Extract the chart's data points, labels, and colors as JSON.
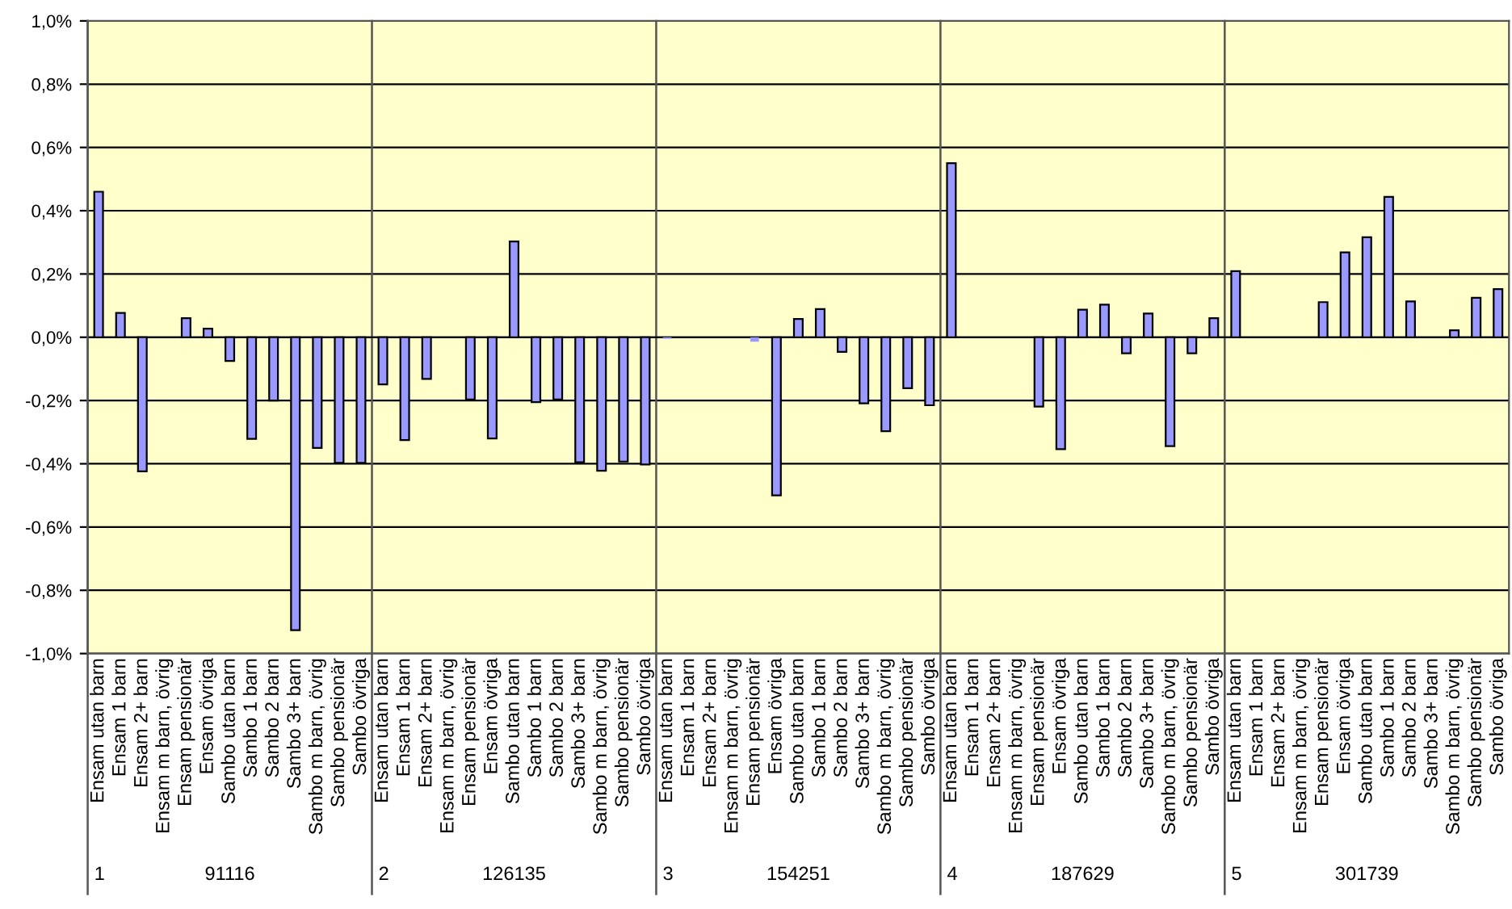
{
  "chart_data": {
    "type": "bar",
    "categories": [
      "Ensam utan barn",
      "Ensam 1 barn",
      "Ensam 2+ barn",
      "Ensam m barn, övrig",
      "Ensam pensionär",
      "Ensam övriga",
      "Sambo utan barn",
      "Sambo 1 barn",
      "Sambo 2 barn",
      "Sambo 3+ barn",
      "Sambo m barn, övrig",
      "Sambo pensionär",
      "Sambo övriga",
      "Ensam utan barn",
      "Ensam 1 barn",
      "Ensam 2+ barn",
      "Ensam m barn, övrig",
      "Ensam pensionär",
      "Ensam övriga",
      "Sambo utan barn",
      "Sambo 1 barn",
      "Sambo 2 barn",
      "Sambo 3+ barn",
      "Sambo m barn, övrig",
      "Sambo pensionär",
      "Sambo övriga",
      "Ensam utan barn",
      "Ensam 1 barn",
      "Ensam 2+ barn",
      "Ensam m barn, övrig",
      "Ensam pensionär",
      "Ensam övriga",
      "Sambo utan barn",
      "Sambo 1 barn",
      "Sambo 2 barn",
      "Sambo 3+ barn",
      "Sambo m barn, övrig",
      "Sambo pensionär",
      "Sambo övriga",
      "Ensam utan barn",
      "Ensam 1 barn",
      "Ensam 2+ barn",
      "Ensam m barn, övrig",
      "Ensam pensionär",
      "Ensam övriga",
      "Sambo utan barn",
      "Sambo 1 barn",
      "Sambo 2 barn",
      "Sambo 3+ barn",
      "Sambo m barn, övrig",
      "Sambo pensionär",
      "Sambo övriga",
      "Ensam utan barn",
      "Ensam 1 barn",
      "Ensam 2+ barn",
      "Ensam m barn, övrig",
      "Ensam pensionär",
      "Ensam övriga",
      "Sambo utan barn",
      "Sambo 1 barn",
      "Sambo 2 barn",
      "Sambo 3+ barn",
      "Sambo m barn, övrig",
      "Sambo pensionär",
      "Sambo övriga"
    ],
    "series": [
      {
        "color": "#9999ff",
        "values": [
          0.46,
          0.077,
          -0.424,
          null,
          0.06,
          0.027,
          -0.075,
          -0.321,
          -0.2,
          -0.926,
          -0.35,
          -0.397,
          -0.397,
          -0.149,
          -0.325,
          -0.132,
          null,
          -0.197,
          -0.32,
          0.303,
          -0.205,
          -0.197,
          -0.395,
          -0.422,
          -0.393,
          -0.402,
          -0.005,
          null,
          null,
          null,
          -0.014,
          -0.5,
          0.058,
          0.089,
          -0.046,
          -0.209,
          -0.297,
          -0.161,
          -0.215,
          0.55,
          null,
          null,
          null,
          -0.219,
          -0.354,
          0.087,
          0.103,
          -0.051,
          0.075,
          -0.344,
          -0.051,
          0.06,
          0.209,
          null,
          null,
          null,
          0.111,
          0.268,
          0.316,
          0.444,
          0.113,
          null,
          0.022,
          0.125,
          0.152
        ]
      }
    ],
    "ylim": [
      -1.0,
      1.0
    ],
    "yticks": [
      {
        "value": -1.0,
        "label": "-1,0%"
      },
      {
        "value": -0.8,
        "label": "-0,8%"
      },
      {
        "value": -0.6,
        "label": "-0,6%"
      },
      {
        "value": -0.4,
        "label": "-0,4%"
      },
      {
        "value": -0.2,
        "label": "-0,2%"
      },
      {
        "value": 0.0,
        "label": "0,0%"
      },
      {
        "value": 0.2,
        "label": "0,2%"
      },
      {
        "value": 0.4,
        "label": "0,4%"
      },
      {
        "value": 0.6,
        "label": "0,6%"
      },
      {
        "value": 0.8,
        "label": "0,8%"
      },
      {
        "value": 1.0,
        "label": "1,0%"
      }
    ],
    "grid": "y",
    "legend": false,
    "annotations": [
      "1",
      "91116",
      "2",
      "126135",
      "3",
      "154251",
      "4",
      "187629",
      "5",
      "301739"
    ]
  }
}
